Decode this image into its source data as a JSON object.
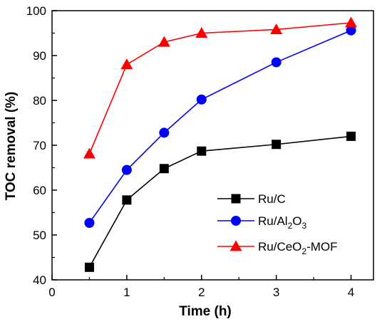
{
  "chart_data": {
    "type": "line",
    "title": "",
    "xlabel": "Time (h)",
    "ylabel": "TOC removal (%)",
    "xlim": [
      0,
      4.3
    ],
    "ylim": [
      40,
      100
    ],
    "xticks": [
      0,
      1,
      2,
      3,
      4
    ],
    "yticks": [
      40,
      50,
      60,
      70,
      80,
      90,
      100
    ],
    "x": [
      0.5,
      1,
      1.5,
      2,
      3,
      4
    ],
    "legend_position": "bottom-right",
    "series": [
      {
        "name": "Ru/C",
        "name_parts": [
          {
            "t": "Ru/C"
          }
        ],
        "marker": "square",
        "line_color": "#000000",
        "marker_color": "#000000",
        "values": [
          42.8,
          57.8,
          64.8,
          68.7,
          70.2,
          72.0
        ]
      },
      {
        "name": "Ru/Al2O3",
        "name_parts": [
          {
            "t": "Ru/Al"
          },
          {
            "t": "2",
            "sub": true
          },
          {
            "t": "O"
          },
          {
            "t": "3",
            "sub": true
          }
        ],
        "marker": "circle",
        "line_color": "#0000ff",
        "marker_color": "#0000ff",
        "values": [
          52.7,
          64.5,
          72.8,
          80.2,
          88.5,
          95.6
        ]
      },
      {
        "name": "Ru/CeO2-MOF",
        "name_parts": [
          {
            "t": "Ru/CeO"
          },
          {
            "t": "2",
            "sub": true
          },
          {
            "t": "-MOF"
          }
        ],
        "marker": "triangle",
        "line_color": "#ff0000",
        "marker_color": "#ff0000",
        "values": [
          68.1,
          88.0,
          93.0,
          95.0,
          95.8,
          97.3
        ]
      }
    ]
  }
}
